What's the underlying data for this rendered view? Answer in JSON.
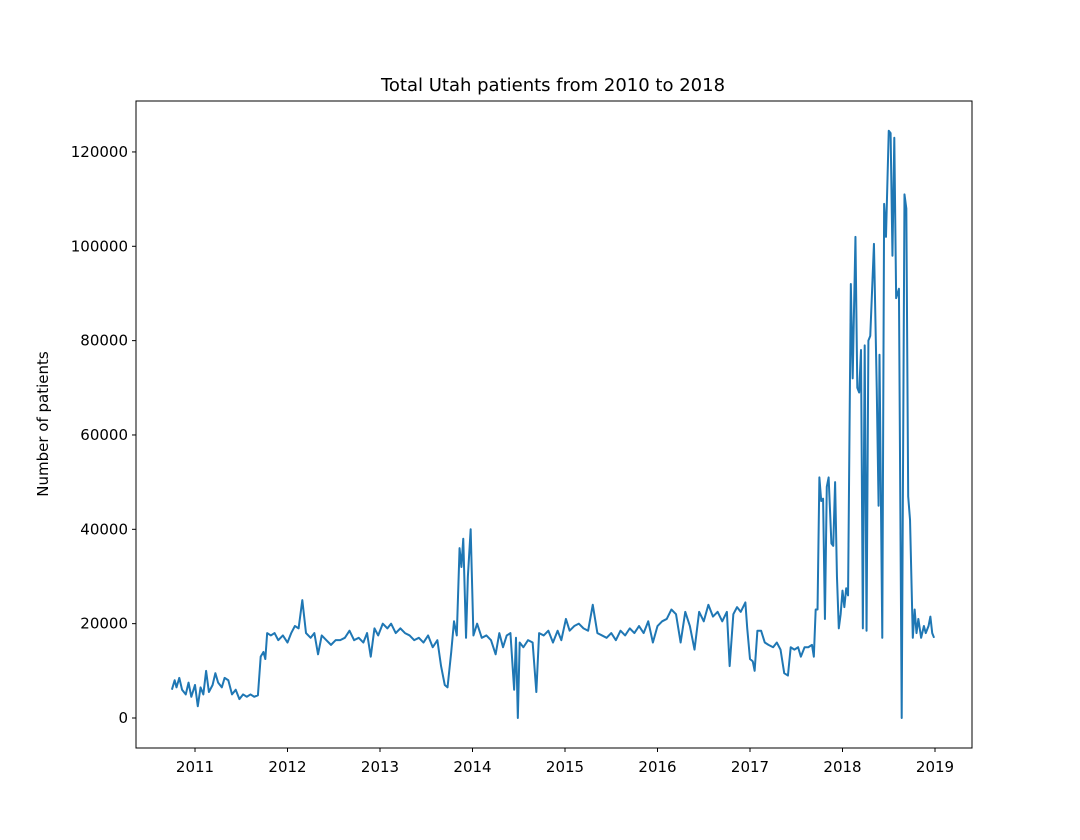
{
  "chart_data": {
    "type": "line",
    "title": "Total Utah patients from 2010 to 2018",
    "ylabel": "Number of patients",
    "color": "#1f77b4",
    "x": [
      2010.75,
      2010.78,
      2010.8,
      2010.83,
      2010.86,
      2010.9,
      2010.93,
      2010.96,
      2011.0,
      2011.03,
      2011.06,
      2011.09,
      2011.12,
      2011.15,
      2011.19,
      2011.22,
      2011.25,
      2011.29,
      2011.32,
      2011.36,
      2011.4,
      2011.44,
      2011.48,
      2011.52,
      2011.56,
      2011.6,
      2011.64,
      2011.68,
      2011.71,
      2011.74,
      2011.76,
      2011.78,
      2011.82,
      2011.86,
      2011.9,
      2011.95,
      2012.0,
      2012.04,
      2012.08,
      2012.12,
      2012.16,
      2012.2,
      2012.25,
      2012.29,
      2012.33,
      2012.37,
      2012.42,
      2012.47,
      2012.52,
      2012.57,
      2012.62,
      2012.67,
      2012.72,
      2012.77,
      2012.82,
      2012.86,
      2012.9,
      2012.94,
      2012.98,
      2013.03,
      2013.08,
      2013.12,
      2013.17,
      2013.22,
      2013.27,
      2013.32,
      2013.37,
      2013.42,
      2013.47,
      2013.52,
      2013.57,
      2013.62,
      2013.66,
      2013.7,
      2013.73,
      2013.77,
      2013.8,
      2013.83,
      2013.86,
      2013.88,
      2013.9,
      2013.93,
      2013.95,
      2013.98,
      2014.01,
      2014.05,
      2014.1,
      2014.15,
      2014.2,
      2014.25,
      2014.29,
      2014.33,
      2014.37,
      2014.41,
      2014.45,
      2014.47,
      2014.49,
      2014.51,
      2014.55,
      2014.6,
      2014.65,
      2014.69,
      2014.72,
      2014.77,
      2014.82,
      2014.87,
      2014.92,
      2014.96,
      2015.01,
      2015.05,
      2015.1,
      2015.15,
      2015.2,
      2015.25,
      2015.3,
      2015.35,
      2015.4,
      2015.45,
      2015.5,
      2015.55,
      2015.6,
      2015.65,
      2015.7,
      2015.75,
      2015.8,
      2015.85,
      2015.9,
      2015.95,
      2016.0,
      2016.05,
      2016.1,
      2016.15,
      2016.2,
      2016.25,
      2016.3,
      2016.35,
      2016.4,
      2016.45,
      2016.5,
      2016.55,
      2016.6,
      2016.65,
      2016.7,
      2016.75,
      2016.78,
      2016.82,
      2016.86,
      2016.9,
      2016.95,
      2016.97,
      2017.0,
      2017.03,
      2017.05,
      2017.08,
      2017.12,
      2017.16,
      2017.2,
      2017.25,
      2017.29,
      2017.33,
      2017.37,
      2017.41,
      2017.44,
      2017.48,
      2017.52,
      2017.55,
      2017.59,
      2017.63,
      2017.67,
      2017.69,
      2017.71,
      2017.73,
      2017.75,
      2017.77,
      2017.79,
      2017.81,
      2017.83,
      2017.85,
      2017.88,
      2017.9,
      2017.92,
      2017.94,
      2017.96,
      2017.98,
      2018.0,
      2018.02,
      2018.04,
      2018.06,
      2018.09,
      2018.11,
      2018.14,
      2018.16,
      2018.18,
      2018.2,
      2018.22,
      2018.24,
      2018.26,
      2018.28,
      2018.3,
      2018.34,
      2018.37,
      2018.39,
      2018.4,
      2018.43,
      2018.45,
      2018.47,
      2018.5,
      2018.52,
      2018.54,
      2018.56,
      2018.58,
      2018.61,
      2018.64,
      2018.67,
      2018.69,
      2018.71,
      2018.73,
      2018.76,
      2018.78,
      2018.8,
      2018.82,
      2018.85,
      2018.88,
      2018.9,
      2018.93,
      2018.95,
      2018.97,
      2018.99
    ],
    "values": [
      6000,
      8000,
      6500,
      8500,
      6000,
      5000,
      7500,
      4500,
      7000,
      2500,
      6500,
      5000,
      10000,
      5500,
      7000,
      9500,
      7500,
      6500,
      8500,
      8000,
      5000,
      6000,
      4000,
      5000,
      4500,
      5000,
      4500,
      4800,
      13000,
      14000,
      12500,
      18000,
      17500,
      18000,
      16500,
      17500,
      16000,
      18000,
      19500,
      19000,
      25000,
      18000,
      17000,
      18000,
      13500,
      17500,
      16500,
      15500,
      16500,
      16500,
      17000,
      18500,
      16500,
      17000,
      16000,
      18000,
      13000,
      19000,
      17500,
      20000,
      19000,
      20000,
      18000,
      19000,
      18000,
      17500,
      16500,
      17000,
      16000,
      17500,
      15000,
      16500,
      11000,
      7000,
      6500,
      14000,
      20500,
      17500,
      36000,
      32000,
      38000,
      17000,
      30000,
      40000,
      17500,
      20000,
      17000,
      17500,
      16500,
      13500,
      18000,
      15000,
      17500,
      18000,
      6000,
      17000,
      0,
      16000,
      15000,
      16500,
      16000,
      5500,
      18000,
      17500,
      18500,
      16000,
      18500,
      16500,
      21000,
      18500,
      19500,
      20000,
      19000,
      18500,
      24000,
      18000,
      17500,
      17000,
      18000,
      16500,
      18500,
      17500,
      19000,
      18000,
      19500,
      18000,
      20500,
      16000,
      19500,
      20500,
      21000,
      23000,
      22000,
      16000,
      22500,
      19500,
      14500,
      22500,
      20500,
      24000,
      21500,
      22500,
      20500,
      22500,
      11000,
      22000,
      23500,
      22500,
      24500,
      19000,
      12500,
      12000,
      10000,
      18500,
      18500,
      16000,
      15500,
      15000,
      16000,
      14500,
      9500,
      9000,
      15000,
      14500,
      15000,
      13000,
      15000,
      15000,
      15500,
      13000,
      23000,
      23000,
      51000,
      46000,
      46500,
      21000,
      49000,
      51000,
      37000,
      36500,
      50000,
      30000,
      19000,
      22000,
      27000,
      23500,
      27500,
      26000,
      92000,
      72000,
      102000,
      70000,
      69000,
      78000,
      19000,
      79000,
      18500,
      80000,
      81000,
      100500,
      70000,
      45000,
      77000,
      17000,
      109000,
      102000,
      124500,
      124000,
      98000,
      123000,
      89000,
      91000,
      0,
      111000,
      108000,
      47000,
      42000,
      17000,
      23000,
      18000,
      21000,
      17000,
      19500,
      18000,
      19500,
      21500,
      18000,
      17000
    ],
    "xlim": [
      2010.362,
      2019.4
    ],
    "xticks": [
      2011,
      2012,
      2013,
      2014,
      2015,
      2016,
      2017,
      2018,
      2019
    ],
    "ylim": [
      -6360,
      130800
    ],
    "yticks": [
      0,
      20000,
      40000,
      60000,
      80000,
      100000,
      120000
    ]
  }
}
